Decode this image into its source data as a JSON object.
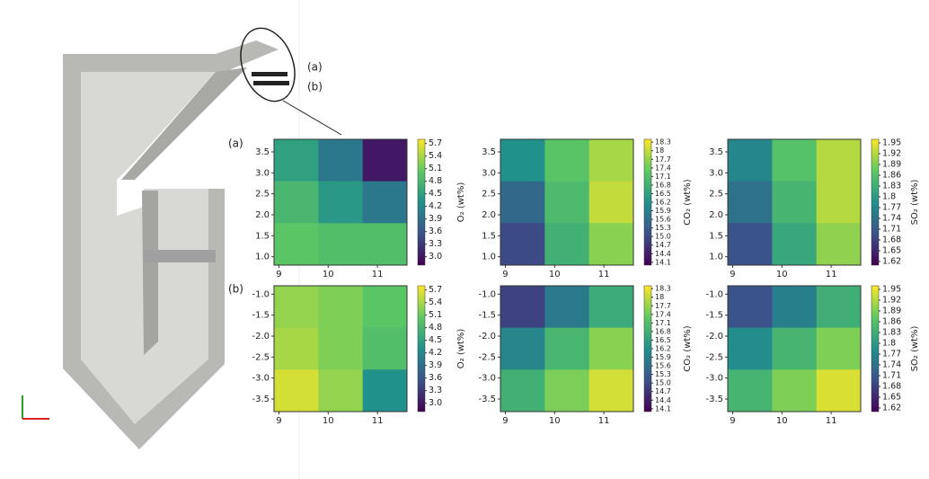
{
  "annotations": {
    "callout_a": "(a)",
    "callout_b": "(b)",
    "row_a": "(a)",
    "row_b": "(b)"
  },
  "chart_data": [
    {
      "type": "heatmap",
      "xlim": [
        8.9,
        11.6
      ],
      "xticks": [
        9,
        10,
        11
      ],
      "ylim": [
        0.8,
        3.8
      ],
      "yticks": [
        {
          "value": 1,
          "label": "1.0"
        },
        1.5,
        {
          "value": 2,
          "label": "2.0"
        },
        2.5,
        {
          "value": 3,
          "label": "3.0"
        },
        3.5
      ],
      "z": [
        [
          4.5,
          4.0,
          3.0
        ],
        [
          4.8,
          4.4,
          4.0
        ],
        [
          5.0,
          4.9,
          4.9
        ]
      ],
      "colorbar_label": "O₂ (wt%)",
      "zlim": [
        2.8,
        5.8
      ],
      "zticks": [
        {
          "value": 3,
          "label": "3.0"
        },
        3.3,
        3.6,
        3.9,
        4.2,
        4.5,
        4.8,
        5.1,
        5.4,
        5.7
      ]
    },
    {
      "type": "heatmap",
      "xlim": [
        8.9,
        11.6
      ],
      "xticks": [
        9,
        10,
        11
      ],
      "ylim": [
        0.8,
        3.8
      ],
      "yticks": [
        {
          "value": 1,
          "label": "1.0"
        },
        1.5,
        {
          "value": 2,
          "label": "2.0"
        },
        2.5,
        {
          "value": 3,
          "label": "3.0"
        },
        3.5
      ],
      "z": [
        [
          16.2,
          17.2,
          17.8
        ],
        [
          15.5,
          17.0,
          18.0
        ],
        [
          15.0,
          16.8,
          17.6
        ]
      ],
      "colorbar_label": "CO₂ (wt%)",
      "zlim": [
        14.0,
        18.4
      ],
      "zticks": [
        14.1,
        14.4,
        14.7,
        {
          "value": 15,
          "label": "15.0"
        },
        15.3,
        15.6,
        15.9,
        16.2,
        16.5,
        16.8,
        17.1,
        17.4,
        17.7,
        18.0,
        18.3
      ]
    },
    {
      "type": "heatmap",
      "xlim": [
        8.9,
        11.6
      ],
      "xticks": [
        9,
        10,
        11
      ],
      "ylim": [
        0.8,
        3.8
      ],
      "yticks": [
        {
          "value": 1,
          "label": "1.0"
        },
        1.5,
        {
          "value": 2,
          "label": "2.0"
        },
        2.5,
        {
          "value": 3,
          "label": "3.0"
        },
        3.5
      ],
      "z": [
        [
          1.77,
          1.86,
          1.92
        ],
        [
          1.74,
          1.84,
          1.92
        ],
        [
          1.7,
          1.82,
          1.9
        ]
      ],
      "colorbar_label": "SO₂ (wt%)",
      "zlim": [
        1.61,
        1.96
      ],
      "zticks": [
        1.62,
        1.65,
        1.68,
        1.71,
        1.74,
        1.77,
        1.8,
        1.83,
        1.86,
        1.89,
        1.92,
        1.95
      ]
    },
    {
      "type": "heatmap",
      "xlim": [
        8.9,
        11.6
      ],
      "xticks": [
        9,
        10,
        11
      ],
      "ylim": [
        -3.8,
        -0.8
      ],
      "yticks": [
        {
          "value": -1,
          "label": "-1.0"
        },
        -1.5,
        {
          "value": -2,
          "label": "-2.0"
        },
        -2.5,
        {
          "value": -3,
          "label": "-3.0"
        },
        -3.5
      ],
      "z": [
        [
          5.3,
          5.2,
          5.0
        ],
        [
          5.4,
          5.2,
          4.9
        ],
        [
          5.6,
          5.3,
          4.3
        ]
      ],
      "colorbar_label": "O₂ (wt%)",
      "zlim": [
        2.8,
        5.8
      ],
      "zticks": [
        {
          "value": 3,
          "label": "3.0"
        },
        3.3,
        3.6,
        3.9,
        4.2,
        4.5,
        4.8,
        5.1,
        5.4,
        5.7
      ]
    },
    {
      "type": "heatmap",
      "xlim": [
        8.9,
        11.6
      ],
      "xticks": [
        9,
        10,
        11
      ],
      "ylim": [
        -3.8,
        -0.8
      ],
      "yticks": [
        {
          "value": -1,
          "label": "-1.0"
        },
        -1.5,
        {
          "value": -2,
          "label": "-2.0"
        },
        -2.5,
        {
          "value": -3,
          "label": "-3.0"
        },
        -3.5
      ],
      "z": [
        [
          14.9,
          15.8,
          16.7
        ],
        [
          16.0,
          16.9,
          17.6
        ],
        [
          16.8,
          17.5,
          18.1
        ]
      ],
      "colorbar_label": "CO₂ (wt%)",
      "zlim": [
        14.0,
        18.4
      ],
      "zticks": [
        14.1,
        14.4,
        14.7,
        {
          "value": 15,
          "label": "15.0"
        },
        15.3,
        15.6,
        15.9,
        16.2,
        16.5,
        16.8,
        17.1,
        17.4,
        17.7,
        18.0,
        18.3
      ]
    },
    {
      "type": "heatmap",
      "xlim": [
        8.9,
        11.6
      ],
      "xticks": [
        9,
        10,
        11
      ],
      "ylim": [
        -3.8,
        -0.8
      ],
      "yticks": [
        {
          "value": -1,
          "label": "-1.0"
        },
        -1.5,
        {
          "value": -2,
          "label": "-2.0"
        },
        -2.5,
        {
          "value": -3,
          "label": "-3.0"
        },
        -3.5
      ],
      "z": [
        [
          1.7,
          1.76,
          1.83
        ],
        [
          1.78,
          1.84,
          1.89
        ],
        [
          1.84,
          1.89,
          1.94
        ]
      ],
      "colorbar_label": "SO₂ (wt%)",
      "zlim": [
        1.61,
        1.96
      ],
      "zticks": [
        1.62,
        1.65,
        1.68,
        1.71,
        1.74,
        1.77,
        1.8,
        1.83,
        1.86,
        1.89,
        1.92,
        1.95
      ]
    }
  ]
}
